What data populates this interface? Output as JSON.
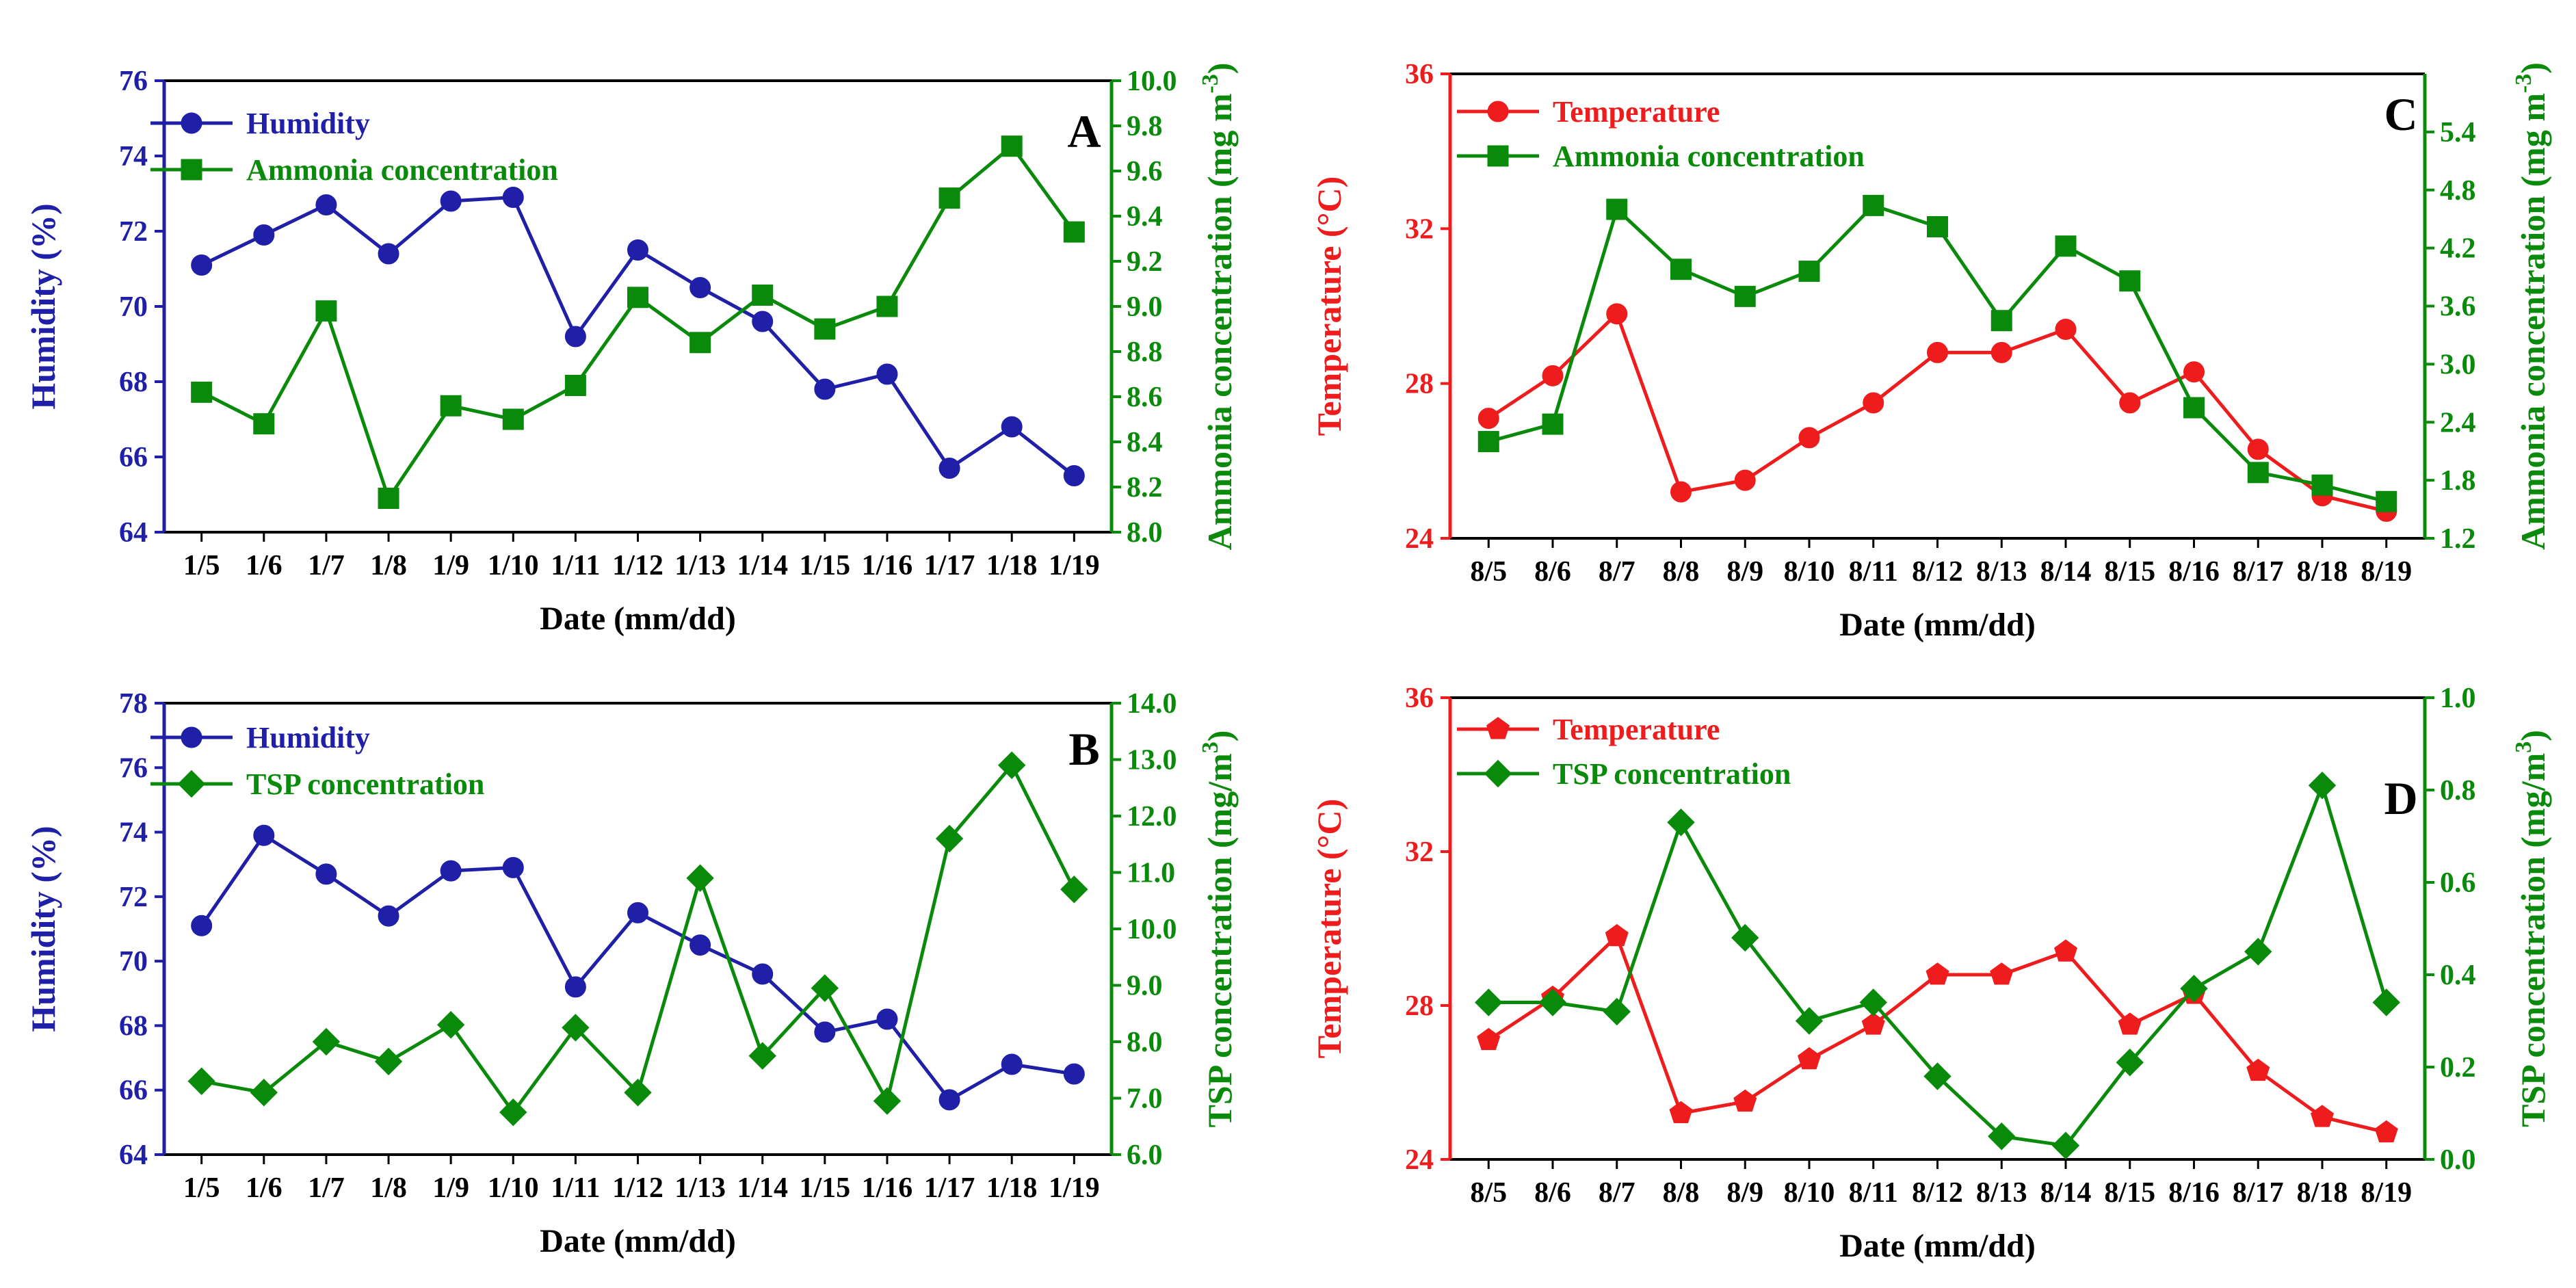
{
  "chart_data": [
    {
      "type": "line",
      "panel_label": "A",
      "xlabel": "Date (mm/dd)",
      "categories": [
        "1/5",
        "1/6",
        "1/7",
        "1/8",
        "1/9",
        "1/10",
        "1/11",
        "1/12",
        "1/13",
        "1/14",
        "1/15",
        "1/16",
        "1/17",
        "1/18",
        "1/19"
      ],
      "left_axis": {
        "label": "Humidity (%)",
        "color": "#1f1fa8",
        "ylim": [
          64,
          76
        ],
        "ticks": [
          "64",
          "66",
          "68",
          "70",
          "72",
          "74",
          "76"
        ]
      },
      "right_axis": {
        "label": "Ammonia concentration (mg m",
        "label_sup": "-3",
        "label_end": ")",
        "color": "#0a8a0a",
        "ylim": [
          8.0,
          10.0
        ],
        "ticks": [
          "8.0",
          "8.2",
          "8.4",
          "8.6",
          "8.8",
          "9.0",
          "9.2",
          "9.4",
          "9.6",
          "9.8",
          "10.0"
        ]
      },
      "series": [
        {
          "name": "Humidity",
          "axis": "left",
          "color": "#1f1fa8",
          "marker": "circle",
          "values": [
            71.1,
            71.9,
            72.7,
            71.4,
            72.8,
            72.9,
            69.2,
            71.5,
            70.5,
            69.6,
            67.8,
            68.2,
            65.7,
            66.8,
            65.5
          ]
        },
        {
          "name": "Ammonia concentration",
          "axis": "right",
          "color": "#0a8a0a",
          "marker": "square",
          "values": [
            8.62,
            8.48,
            8.98,
            8.15,
            8.56,
            8.5,
            8.65,
            9.04,
            8.84,
            9.05,
            8.9,
            9.0,
            9.48,
            9.71,
            9.33
          ]
        }
      ],
      "legend_position": "top-left"
    },
    {
      "type": "line",
      "panel_label": "B",
      "xlabel": "Date (mm/dd)",
      "categories": [
        "1/5",
        "1/6",
        "1/7",
        "1/8",
        "1/9",
        "1/10",
        "1/11",
        "1/12",
        "1/13",
        "1/14",
        "1/15",
        "1/16",
        "1/17",
        "1/18",
        "1/19"
      ],
      "left_axis": {
        "label": "Humidity (%)",
        "color": "#1f1fa8",
        "ylim": [
          64,
          78
        ],
        "ticks": [
          "64",
          "66",
          "68",
          "70",
          "72",
          "74",
          "76",
          "78"
        ]
      },
      "right_axis": {
        "label": "TSP concentration (mg/m",
        "label_sup": "3",
        "label_end": ")",
        "color": "#0a8a0a",
        "ylim": [
          6.0,
          14.0
        ],
        "ticks": [
          "6.0",
          "7.0",
          "8.0",
          "9.0",
          "10.0",
          "11.0",
          "12.0",
          "13.0",
          "14.0"
        ]
      },
      "series": [
        {
          "name": "Humidity",
          "axis": "left",
          "color": "#1f1fa8",
          "marker": "circle",
          "values": [
            71.1,
            73.9,
            72.7,
            71.4,
            72.8,
            72.9,
            69.2,
            71.5,
            70.5,
            69.6,
            67.8,
            68.2,
            65.7,
            66.8,
            66.5
          ]
        },
        {
          "name": "TSP concentration",
          "axis": "right",
          "color": "#0a8a0a",
          "marker": "diamond",
          "values": [
            7.3,
            7.1,
            8.0,
            7.65,
            8.3,
            6.75,
            8.25,
            7.1,
            10.9,
            7.75,
            8.95,
            6.95,
            11.6,
            12.9,
            10.7
          ]
        }
      ],
      "legend_position": "top-left"
    },
    {
      "type": "line",
      "panel_label": "C",
      "xlabel": "Date (mm/dd)",
      "categories": [
        "8/5",
        "8/6",
        "8/7",
        "8/8",
        "8/9",
        "8/10",
        "8/11",
        "8/12",
        "8/13",
        "8/14",
        "8/15",
        "8/16",
        "8/17",
        "8/18",
        "8/19"
      ],
      "left_axis": {
        "label": "Temperature (°C)",
        "color": "#ee1c1c",
        "ylim": [
          24,
          36
        ],
        "ticks": [
          "24",
          "28",
          "32",
          "36"
        ]
      },
      "right_axis": {
        "label": "Ammonia concentration (mg m",
        "label_sup": "-3",
        "label_end": ")",
        "color": "#0a8a0a",
        "ylim": [
          1.2,
          6.0
        ],
        "ticks": [
          "1.2",
          "1.8",
          "2.4",
          "3.0",
          "3.6",
          "4.2",
          "4.8",
          "5.4"
        ]
      },
      "series": [
        {
          "name": "Temperature",
          "axis": "left",
          "color": "#ee1c1c",
          "marker": "circle",
          "values": [
            27.1,
            28.2,
            29.8,
            25.2,
            25.5,
            26.6,
            27.5,
            28.8,
            28.8,
            29.4,
            27.5,
            28.3,
            26.3,
            25.1,
            24.7
          ]
        },
        {
          "name": "Ammonia concentration",
          "axis": "right",
          "color": "#0a8a0a",
          "marker": "square",
          "values": [
            2.2,
            2.38,
            4.6,
            3.98,
            3.7,
            3.96,
            4.64,
            4.42,
            3.45,
            4.22,
            3.86,
            2.55,
            1.88,
            1.75,
            1.58
          ]
        }
      ],
      "legend_position": "top-left"
    },
    {
      "type": "line",
      "panel_label": "D",
      "xlabel": "Date (mm/dd)",
      "categories": [
        "8/5",
        "8/6",
        "8/7",
        "8/8",
        "8/9",
        "8/10",
        "8/11",
        "8/12",
        "8/13",
        "8/14",
        "8/15",
        "8/16",
        "8/17",
        "8/18",
        "8/19"
      ],
      "left_axis": {
        "label": "Temperature (°C)",
        "color": "#ee1c1c",
        "ylim": [
          24,
          36
        ],
        "ticks": [
          "24",
          "28",
          "32",
          "36"
        ]
      },
      "right_axis": {
        "label": "TSP concentration (mg/m",
        "label_sup": "3",
        "label_end": ")",
        "color": "#0a8a0a",
        "ylim": [
          0.0,
          1.0
        ],
        "ticks": [
          "0.0",
          "0.2",
          "0.4",
          "0.6",
          "0.8",
          "1.0"
        ]
      },
      "series": [
        {
          "name": "Temperature",
          "axis": "left",
          "color": "#ee1c1c",
          "marker": "pentagon",
          "values": [
            27.1,
            28.2,
            29.8,
            25.2,
            25.5,
            26.6,
            27.5,
            28.8,
            28.8,
            29.4,
            27.5,
            28.3,
            26.3,
            25.1,
            24.7
          ]
        },
        {
          "name": "TSP concentration",
          "axis": "right",
          "color": "#0a8a0a",
          "marker": "diamond",
          "values": [
            0.34,
            0.34,
            0.32,
            0.73,
            0.48,
            0.3,
            0.34,
            0.18,
            0.05,
            0.03,
            0.21,
            0.37,
            0.45,
            0.81,
            0.34
          ]
        }
      ],
      "legend_position": "top-left"
    }
  ]
}
